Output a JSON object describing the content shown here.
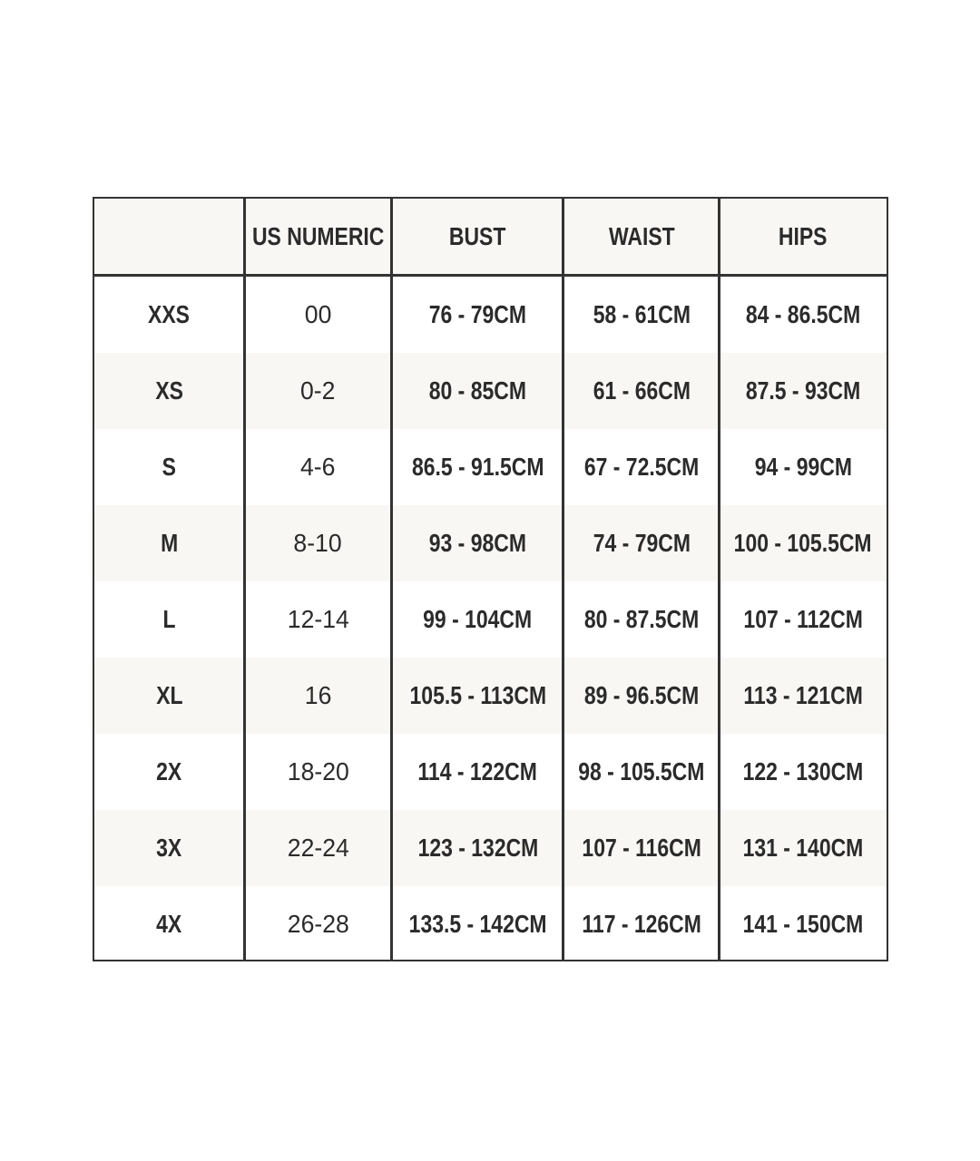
{
  "headers": [
    "",
    "US NUMERIC",
    "BUST",
    "WAIST",
    "HIPS"
  ],
  "rows": [
    [
      "XXS",
      "00",
      "76 - 79CM",
      "58 - 61CM",
      "84 - 86.5CM"
    ],
    [
      "XS",
      "0-2",
      "80 - 85CM",
      "61 - 66CM",
      "87.5 - 93CM"
    ],
    [
      "S",
      "4-6",
      "86.5 - 91.5CM",
      "67 - 72.5CM",
      "94 - 99CM"
    ],
    [
      "M",
      "8-10",
      "93 - 98CM",
      "74 - 79CM",
      "100 - 105.5CM"
    ],
    [
      "L",
      "12-14",
      "99 - 104CM",
      "80 - 87.5CM",
      "107 - 112CM"
    ],
    [
      "XL",
      "16",
      "105.5 - 113CM",
      "89 - 96.5CM",
      "113 - 121CM"
    ],
    [
      "2X",
      "18-20",
      "114 - 122CM",
      "98 - 105.5CM",
      "122 - 130CM"
    ],
    [
      "3X",
      "22-24",
      "123 - 132CM",
      "107 - 116CM",
      "131 - 140CM"
    ],
    [
      "4X",
      "26-28",
      "133.5 - 142CM",
      "117 - 126CM",
      "141 - 150CM"
    ]
  ],
  "colors": {
    "stripe": "#f8f7f3",
    "border": "#333333",
    "text": "#2b2b2b"
  }
}
